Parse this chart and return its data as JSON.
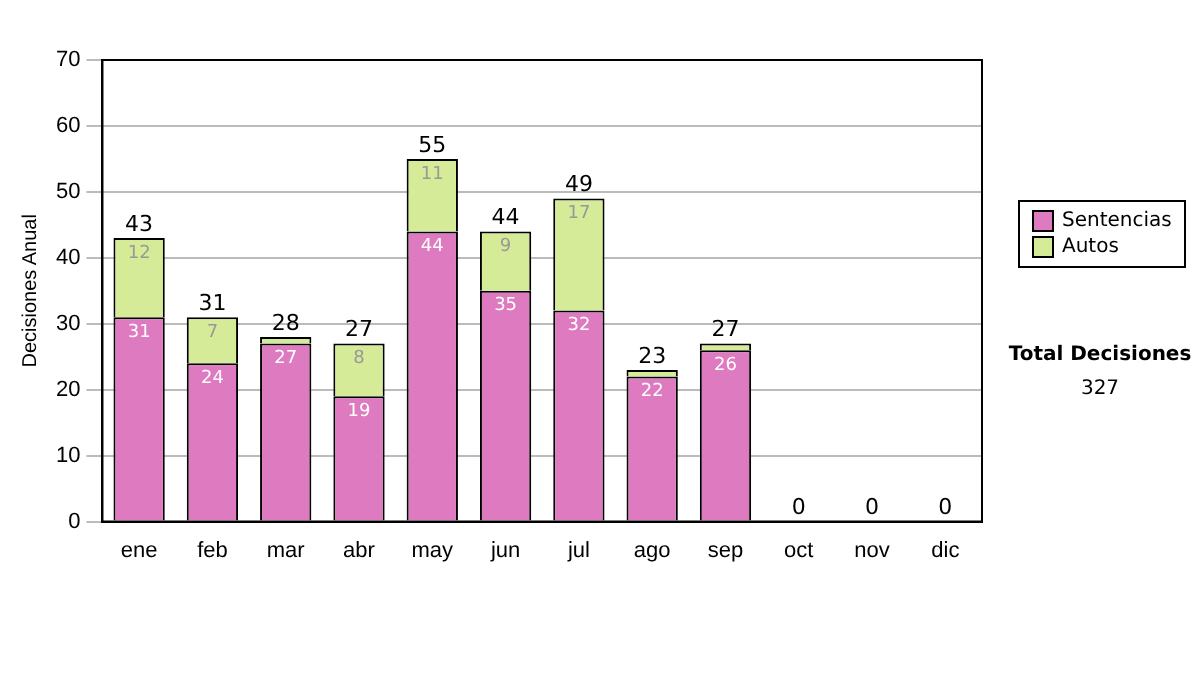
{
  "chart_data": {
    "type": "bar",
    "ylabel": "Decisiones Anual",
    "categories": [
      "ene",
      "feb",
      "mar",
      "abr",
      "may",
      "jun",
      "jul",
      "ago",
      "sep",
      "oct",
      "nov",
      "dic"
    ],
    "stacked": true,
    "series": [
      {
        "name": "Sentencias",
        "color": "#dd7ac0",
        "values": [
          31,
          24,
          27,
          19,
          44,
          35,
          32,
          22,
          26,
          0,
          0,
          0
        ],
        "value_labels": [
          "31",
          "24",
          "27",
          "19",
          "44",
          "35",
          "32",
          "22",
          "26",
          null,
          null,
          null
        ]
      },
      {
        "name": "Autos",
        "color": "#d6eb98",
        "values": [
          12,
          7,
          1,
          8,
          11,
          9,
          17,
          1,
          1,
          0,
          0,
          0
        ],
        "value_labels": [
          "12",
          "7",
          null,
          "8",
          "11",
          "9",
          "17",
          null,
          null,
          null,
          null,
          null
        ]
      }
    ],
    "totals": [
      "43",
      "31",
      "28",
      "27",
      "55",
      "44",
      "49",
      "23",
      "27",
      "0",
      "0",
      "0"
    ],
    "ylim": [
      0,
      70
    ],
    "yticks": [
      0,
      10,
      20,
      30,
      40,
      50,
      60,
      70
    ],
    "grid": "y",
    "legend": "right",
    "annotations": [
      "Total Decisiones",
      "327"
    ]
  }
}
